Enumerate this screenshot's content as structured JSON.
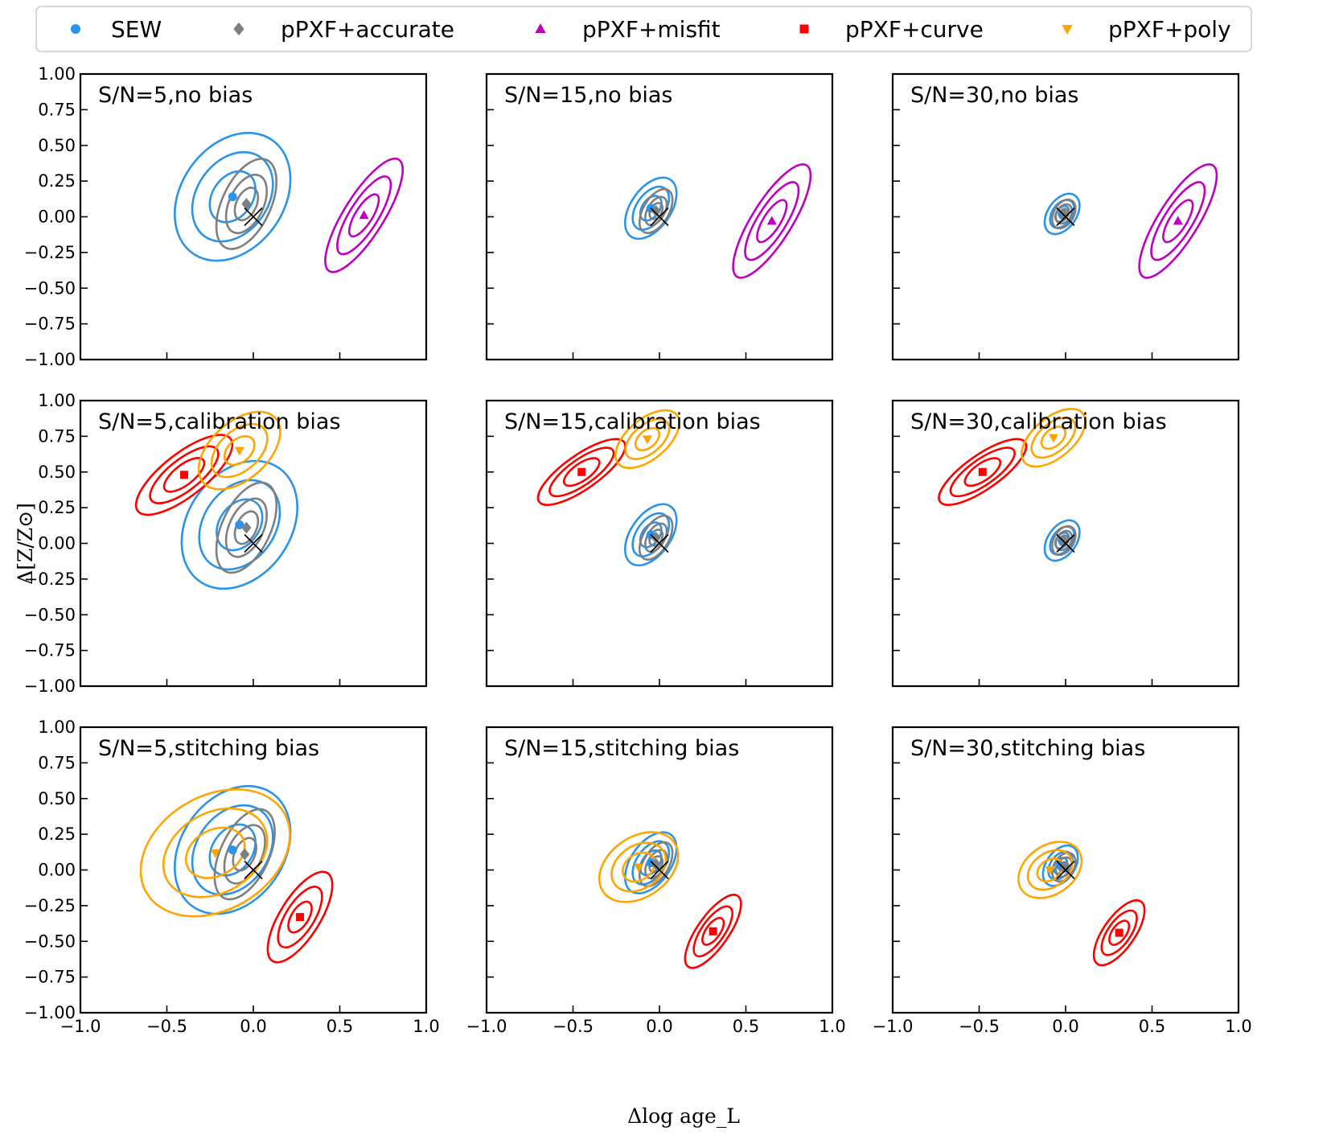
{
  "colors": {
    "SEW": "#2a93ea",
    "accurate": "#7f7f7f",
    "misfit": "#c000c0",
    "curve": "#ff0000",
    "poly": "#ffa500"
  },
  "legend": [
    {
      "key": "SEW",
      "label": "SEW",
      "marker": "circle"
    },
    {
      "key": "accurate",
      "label": "pPXF+accurate",
      "marker": "diamond"
    },
    {
      "key": "misfit",
      "label": "pPXF+misfit",
      "marker": "triangle-up"
    },
    {
      "key": "curve",
      "label": "pPXF+curve",
      "marker": "square"
    },
    {
      "key": "poly",
      "label": "pPXF+poly",
      "marker": "triangle-down"
    }
  ],
  "axes": {
    "xlabel": "Δlog age_L",
    "ylabel": "Δ[Z/Z⊙]",
    "xlim": [
      -1.0,
      1.0
    ],
    "ylim": [
      -1.0,
      1.0
    ],
    "xticks": [
      -1.0,
      -0.5,
      0.0,
      0.5,
      1.0
    ],
    "xtick_labels": [
      "−1.0",
      "−0.5",
      "0.0",
      "0.5",
      "1.0"
    ],
    "yticks": [
      1.0,
      0.75,
      0.5,
      0.25,
      0.0,
      -0.25,
      -0.5,
      -0.75,
      -1.0
    ],
    "ytick_labels": [
      "1.00",
      "0.75",
      "0.50",
      "0.25",
      "0.00",
      "−0.25",
      "−0.50",
      "−0.75",
      "−1.00"
    ]
  },
  "chart_data": {
    "type": "scatter",
    "title": "",
    "xlabel": "Δlog age_L",
    "ylabel": "Δ[Z/Z⊙]",
    "xlim": [
      -1.0,
      1.0
    ],
    "ylim": [
      -1.0,
      1.0
    ],
    "truth_marker": {
      "x": 0.0,
      "y": 0.0,
      "symbol": "×"
    },
    "panels": [
      {
        "title": "S/N=5,no bias",
        "row": 0,
        "col": 0,
        "series": [
          {
            "key": "SEW",
            "center": [
              -0.12,
              0.14
            ],
            "widths": [
              0.16,
              0.28,
              0.4
            ],
            "heights": [
              0.14,
              0.25,
              0.36
            ],
            "angle": -55
          },
          {
            "key": "accurate",
            "center": [
              -0.04,
              0.09
            ],
            "widths": [
              0.1,
              0.18,
              0.28
            ],
            "heights": [
              0.07,
              0.12,
              0.17
            ],
            "angle": -65
          },
          {
            "key": "misfit",
            "center": [
              0.64,
              0.01
            ],
            "widths": [
              0.14,
              0.26,
              0.38
            ],
            "heights": [
              0.06,
              0.1,
              0.14
            ],
            "angle": -58
          }
        ]
      },
      {
        "title": "S/N=15,no bias",
        "row": 0,
        "col": 1,
        "series": [
          {
            "key": "SEW",
            "center": [
              -0.05,
              0.06
            ],
            "widths": [
              0.08,
              0.14,
              0.2
            ],
            "heights": [
              0.06,
              0.1,
              0.14
            ],
            "angle": -55
          },
          {
            "key": "accurate",
            "center": [
              -0.02,
              0.04
            ],
            "widths": [
              0.05,
              0.09,
              0.14
            ],
            "heights": [
              0.04,
              0.06,
              0.09
            ],
            "angle": -60
          },
          {
            "key": "misfit",
            "center": [
              0.65,
              -0.03
            ],
            "widths": [
              0.14,
              0.26,
              0.38
            ],
            "heights": [
              0.06,
              0.1,
              0.14
            ],
            "angle": -58
          }
        ]
      },
      {
        "title": "S/N=30,no bias",
        "row": 0,
        "col": 2,
        "series": [
          {
            "key": "SEW",
            "center": [
              -0.02,
              0.02
            ],
            "widths": [
              0.05,
              0.09,
              0.13
            ],
            "heights": [
              0.04,
              0.07,
              0.1
            ],
            "angle": -55
          },
          {
            "key": "accurate",
            "center": [
              -0.01,
              0.02
            ],
            "widths": [
              0.03,
              0.06,
              0.09
            ],
            "heights": [
              0.03,
              0.05,
              0.07
            ],
            "angle": -60
          },
          {
            "key": "misfit",
            "center": [
              0.65,
              -0.03
            ],
            "widths": [
              0.14,
              0.26,
              0.38
            ],
            "heights": [
              0.06,
              0.1,
              0.14
            ],
            "angle": -58
          }
        ]
      },
      {
        "title": "S/N=5,calibration bias",
        "row": 1,
        "col": 0,
        "series": [
          {
            "key": "SEW",
            "center": [
              -0.08,
              0.13
            ],
            "widths": [
              0.16,
              0.28,
              0.4
            ],
            "heights": [
              0.14,
              0.25,
              0.36
            ],
            "angle": -55
          },
          {
            "key": "accurate",
            "center": [
              -0.04,
              0.11
            ],
            "widths": [
              0.1,
              0.18,
              0.28
            ],
            "heights": [
              0.07,
              0.12,
              0.17
            ],
            "angle": -65
          },
          {
            "key": "curve",
            "center": [
              -0.4,
              0.48
            ],
            "widths": [
              0.14,
              0.24,
              0.34
            ],
            "heights": [
              0.07,
              0.11,
              0.15
            ],
            "angle": -38
          },
          {
            "key": "poly",
            "center": [
              -0.08,
              0.65
            ],
            "widths": [
              0.1,
              0.19,
              0.28
            ],
            "heights": [
              0.08,
              0.14,
              0.2
            ],
            "angle": -42
          }
        ]
      },
      {
        "title": "S/N=15,calibration bias",
        "row": 1,
        "col": 1,
        "series": [
          {
            "key": "SEW",
            "center": [
              -0.05,
              0.06
            ],
            "widths": [
              0.08,
              0.14,
              0.2
            ],
            "heights": [
              0.06,
              0.1,
              0.14
            ],
            "angle": -55
          },
          {
            "key": "accurate",
            "center": [
              -0.02,
              0.04
            ],
            "widths": [
              0.05,
              0.09,
              0.14
            ],
            "heights": [
              0.04,
              0.06,
              0.09
            ],
            "angle": -60
          },
          {
            "key": "curve",
            "center": [
              -0.45,
              0.5
            ],
            "widths": [
              0.12,
              0.22,
              0.3
            ],
            "heights": [
              0.06,
              0.09,
              0.12
            ],
            "angle": -35
          },
          {
            "key": "poly",
            "center": [
              -0.07,
              0.73
            ],
            "widths": [
              0.08,
              0.15,
              0.22
            ],
            "heights": [
              0.06,
              0.1,
              0.14
            ],
            "angle": -40
          }
        ]
      },
      {
        "title": "S/N=30,calibration bias",
        "row": 1,
        "col": 2,
        "series": [
          {
            "key": "SEW",
            "center": [
              -0.02,
              0.02
            ],
            "widths": [
              0.05,
              0.09,
              0.13
            ],
            "heights": [
              0.04,
              0.07,
              0.1
            ],
            "angle": -55
          },
          {
            "key": "accurate",
            "center": [
              -0.01,
              0.02
            ],
            "widths": [
              0.03,
              0.06,
              0.09
            ],
            "heights": [
              0.03,
              0.05,
              0.07
            ],
            "angle": -60
          },
          {
            "key": "curve",
            "center": [
              -0.48,
              0.5
            ],
            "widths": [
              0.12,
              0.22,
              0.3
            ],
            "heights": [
              0.06,
              0.09,
              0.12
            ],
            "angle": -35
          },
          {
            "key": "poly",
            "center": [
              -0.07,
              0.74
            ],
            "widths": [
              0.08,
              0.15,
              0.22
            ],
            "heights": [
              0.06,
              0.1,
              0.14
            ],
            "angle": -40
          }
        ]
      },
      {
        "title": "S/N=5,stitching bias",
        "row": 2,
        "col": 0,
        "series": [
          {
            "key": "SEW",
            "center": [
              -0.12,
              0.14
            ],
            "widths": [
              0.16,
              0.28,
              0.4
            ],
            "heights": [
              0.14,
              0.25,
              0.36
            ],
            "angle": -55
          },
          {
            "key": "accurate",
            "center": [
              -0.05,
              0.11
            ],
            "widths": [
              0.1,
              0.18,
              0.28
            ],
            "heights": [
              0.07,
              0.12,
              0.17
            ],
            "angle": -65
          },
          {
            "key": "curve",
            "center": [
              0.27,
              -0.33
            ],
            "widths": [
              0.1,
              0.2,
              0.3
            ],
            "heights": [
              0.06,
              0.1,
              0.14
            ],
            "angle": -58
          },
          {
            "key": "poly",
            "center": [
              -0.22,
              0.12
            ],
            "widths": [
              0.18,
              0.32,
              0.46
            ],
            "heights": [
              0.16,
              0.28,
              0.4
            ],
            "angle": -30
          }
        ]
      },
      {
        "title": "S/N=15,stitching bias",
        "row": 2,
        "col": 1,
        "series": [
          {
            "key": "SEW",
            "center": [
              -0.05,
              0.05
            ],
            "widths": [
              0.08,
              0.14,
              0.2
            ],
            "heights": [
              0.06,
              0.1,
              0.14
            ],
            "angle": -55
          },
          {
            "key": "accurate",
            "center": [
              -0.02,
              0.04
            ],
            "widths": [
              0.05,
              0.09,
              0.14
            ],
            "heights": [
              0.04,
              0.06,
              0.09
            ],
            "angle": -60
          },
          {
            "key": "curve",
            "center": [
              0.31,
              -0.43
            ],
            "widths": [
              0.09,
              0.17,
              0.25
            ],
            "heights": [
              0.05,
              0.08,
              0.11
            ],
            "angle": -55
          },
          {
            "key": "poly",
            "center": [
              -0.12,
              0.02
            ],
            "widths": [
              0.1,
              0.17,
              0.25
            ],
            "heights": [
              0.09,
              0.15,
              0.21
            ],
            "angle": -35
          }
        ]
      },
      {
        "title": "S/N=30,stitching bias",
        "row": 2,
        "col": 2,
        "series": [
          {
            "key": "SEW",
            "center": [
              -0.03,
              0.03
            ],
            "widths": [
              0.05,
              0.09,
              0.13
            ],
            "heights": [
              0.04,
              0.07,
              0.1
            ],
            "angle": -55
          },
          {
            "key": "accurate",
            "center": [
              -0.01,
              0.02
            ],
            "widths": [
              0.03,
              0.06,
              0.09
            ],
            "heights": [
              0.03,
              0.05,
              0.07
            ],
            "angle": -60
          },
          {
            "key": "curve",
            "center": [
              0.31,
              -0.44
            ],
            "widths": [
              0.08,
              0.15,
              0.22
            ],
            "heights": [
              0.05,
              0.08,
              0.11
            ],
            "angle": -55
          },
          {
            "key": "poly",
            "center": [
              -0.09,
              0.0
            ],
            "widths": [
              0.08,
              0.14,
              0.2
            ],
            "heights": [
              0.07,
              0.12,
              0.17
            ],
            "angle": -35
          }
        ]
      }
    ]
  }
}
